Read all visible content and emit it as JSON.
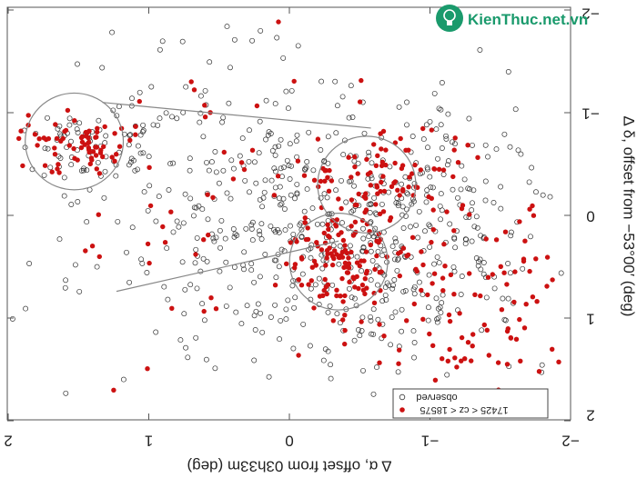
{
  "watermark": {
    "text": "KienThuc.net.vn"
  },
  "chart_data": {
    "type": "scatter",
    "title": "",
    "note": "figure is shown mirrored (rotated 180 degrees)",
    "xlabel": "Δ α, offset from 03h33m (deg)",
    "ylabel": "Δ δ, offset from −53°00′ (deg)",
    "xlim": [
      -2,
      2
    ],
    "ylim": [
      -2,
      2
    ],
    "x_ticks": [
      "−2",
      "−1",
      "0",
      "1",
      "2"
    ],
    "y_ticks": [
      "−2",
      "−1",
      "0",
      "1",
      "2"
    ],
    "legend": {
      "placement": "lower-right",
      "entries": [
        "observed",
        "17425 < cz < 18575"
      ]
    },
    "colors": {
      "observed": "#333333",
      "selected": "#cc1111",
      "frame": "#555555",
      "lines": "#888888"
    },
    "regions": [
      {
        "shape": "circle",
        "cx": -0.55,
        "cy": -0.3,
        "r": 0.42
      },
      {
        "shape": "circle",
        "cx": -0.35,
        "cy": 0.45,
        "r": 0.42
      },
      {
        "shape": "circle",
        "cx": 1.53,
        "cy": -0.72,
        "r": 0.42
      }
    ],
    "connectors": [
      [
        [
          -0.35,
          0.25
        ],
        [
          1.23,
          0.74
        ]
      ],
      [
        [
          -0.58,
          -0.85
        ],
        [
          1.33,
          -1.1
        ]
      ]
    ],
    "clusters": [
      {
        "series": "observed",
        "cx": -0.6,
        "cy": 0.2,
        "sx": 0.65,
        "sy": 0.7,
        "n": 520
      },
      {
        "series": "observed",
        "cx": 0.55,
        "cy": -0.3,
        "sx": 0.45,
        "sy": 0.75,
        "n": 130
      },
      {
        "series": "observed",
        "cx": 1.45,
        "cy": -0.7,
        "sx": 0.25,
        "sy": 0.2,
        "n": 70
      },
      {
        "series": "observed",
        "cx": 1.2,
        "cy": 0.7,
        "sx": 0.5,
        "sy": 0.9,
        "n": 40
      },
      {
        "series": "selected",
        "cx": -0.35,
        "cy": 0.45,
        "sx": 0.2,
        "sy": 0.22,
        "n": 110
      },
      {
        "series": "selected",
        "cx": -0.65,
        "cy": -0.35,
        "sx": 0.28,
        "sy": 0.25,
        "n": 90
      },
      {
        "series": "selected",
        "cx": 1.5,
        "cy": -0.7,
        "sx": 0.2,
        "sy": 0.12,
        "n": 70
      },
      {
        "series": "selected",
        "cx": -1.3,
        "cy": 0.8,
        "sx": 0.5,
        "sy": 0.6,
        "n": 140
      },
      {
        "series": "selected",
        "cx": 0.5,
        "cy": -0.2,
        "sx": 0.5,
        "sy": 0.7,
        "n": 40
      },
      {
        "series": "selected",
        "cx": 1.3,
        "cy": 0.5,
        "sx": 0.4,
        "sy": 0.6,
        "n": 12
      }
    ]
  }
}
